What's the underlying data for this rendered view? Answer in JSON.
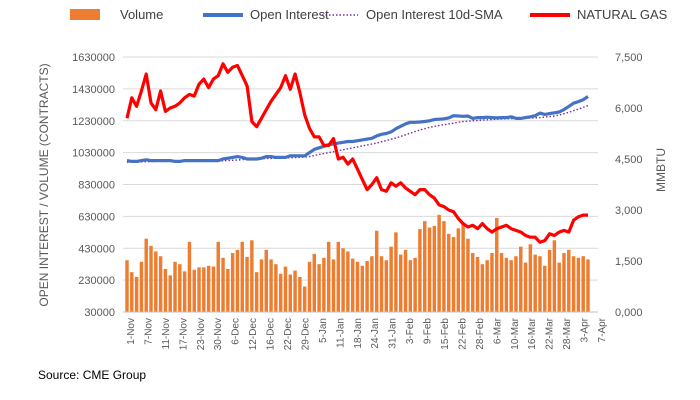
{
  "chart_data": {
    "type": "bar",
    "title": "",
    "source": "Source: CME Group",
    "ylabel_left": "OPEN INTEREST / VOLUME (CONTRACTS)",
    "ylabel_right": "MMBTU",
    "y_left_ticks": [
      "30000",
      "230000",
      "430000",
      "630000",
      "830000",
      "1030000",
      "1230000",
      "1430000",
      "1630000"
    ],
    "y_left_range": [
      30000,
      1630000
    ],
    "y_right_ticks": [
      "0,000",
      "1,500",
      "3,000",
      "4,500",
      "6,000",
      "7,500"
    ],
    "y_right_range": [
      0,
      7500
    ],
    "x_tick_labels": [
      "1-Nov",
      "7-Nov",
      "11-Nov",
      "17-Nov",
      "23-Nov",
      "30-Nov",
      "6-Dec",
      "12-Dec",
      "16-Dec",
      "22-Dec",
      "29-Dec",
      "5-Jan",
      "11-Jan",
      "18-Jan",
      "24-Jan",
      "31-Jan",
      "3-Feb",
      "9-Feb",
      "15-Feb",
      "22-Feb",
      "28-Feb",
      "6-Mar",
      "10-Mar",
      "16-Mar",
      "22-Mar",
      "28-Mar",
      "3-Apr",
      "7-Apr"
    ],
    "grid": "horizontal",
    "legend": {
      "position": "top",
      "entries": [
        "Volume",
        "Open Interest",
        "Open Interest 10d-SMA",
        "NATURAL GAS"
      ]
    },
    "colors": {
      "volume": "#ED7D31",
      "open_interest": "#4472C4",
      "open_interest_sma": "#7030A0",
      "natural_gas": "#FF0000",
      "grid": "#D9D9D9"
    },
    "series": [
      {
        "name": "Volume",
        "type": "bar",
        "axis": "left",
        "values": [
          355000,
          280000,
          250000,
          345000,
          490000,
          445000,
          410000,
          380000,
          300000,
          260000,
          345000,
          330000,
          285000,
          470000,
          295000,
          310000,
          310000,
          320000,
          315000,
          470000,
          370000,
          300000,
          400000,
          420000,
          470000,
          375000,
          480000,
          280000,
          360000,
          420000,
          360000,
          330000,
          270000,
          315000,
          265000,
          290000,
          250000,
          190000,
          345000,
          395000,
          330000,
          370000,
          470000,
          360000,
          470000,
          430000,
          410000,
          365000,
          345000,
          320000,
          350000,
          380000,
          540000,
          380000,
          355000,
          440000,
          530000,
          390000,
          420000,
          355000,
          370000,
          550000,
          600000,
          560000,
          570000,
          640000,
          600000,
          520000,
          500000,
          555000,
          580000,
          490000,
          400000,
          375000,
          330000,
          355000,
          400000,
          620000,
          400000,
          370000,
          355000,
          380000,
          440000,
          340000,
          455000,
          390000,
          380000,
          320000,
          420000,
          480000,
          340000,
          400000,
          420000,
          380000,
          370000,
          380000,
          360000
        ]
      },
      {
        "name": "Open Interest",
        "type": "line",
        "axis": "left",
        "values": [
          980000,
          975000,
          975000,
          980000,
          985000,
          980000,
          980000,
          980000,
          980000,
          980000,
          975000,
          975000,
          980000,
          980000,
          980000,
          980000,
          980000,
          980000,
          980000,
          980000,
          990000,
          995000,
          1000000,
          1005000,
          1000000,
          990000,
          990000,
          990000,
          995000,
          1005000,
          1005000,
          1000000,
          1000000,
          1000000,
          1010000,
          1010000,
          1010000,
          1010000,
          1030000,
          1050000,
          1060000,
          1070000,
          1080000,
          1085000,
          1090000,
          1095000,
          1100000,
          1100000,
          1105000,
          1110000,
          1115000,
          1120000,
          1135000,
          1145000,
          1150000,
          1160000,
          1180000,
          1195000,
          1210000,
          1220000,
          1220000,
          1222000,
          1225000,
          1230000,
          1238000,
          1240000,
          1242000,
          1248000,
          1262000,
          1260000,
          1258000,
          1260000,
          1245000,
          1250000,
          1250000,
          1252000,
          1250000,
          1248000,
          1250000,
          1250000,
          1255000,
          1245000,
          1245000,
          1250000,
          1255000,
          1262000,
          1278000,
          1270000,
          1275000,
          1280000,
          1285000,
          1300000,
          1320000,
          1340000,
          1350000,
          1362000,
          1382000
        ]
      },
      {
        "name": "Open Interest 10d-SMA",
        "type": "line",
        "style": "dotted",
        "axis": "left",
        "values": [
          970000,
          970000,
          970000,
          972000,
          973000,
          974000,
          975000,
          976000,
          977000,
          978000,
          978000,
          978000,
          978000,
          978000,
          978000,
          978000,
          978000,
          978000,
          978000,
          978000,
          979000,
          980000,
          982000,
          984000,
          986000,
          988000,
          990000,
          991000,
          992000,
          993000,
          994000,
          995000,
          996000,
          997000,
          998000,
          999000,
          1000000,
          1002000,
          1006000,
          1012000,
          1018000,
          1024000,
          1030000,
          1036000,
          1042000,
          1048000,
          1054000,
          1060000,
          1066000,
          1072000,
          1078000,
          1084000,
          1090000,
          1098000,
          1106000,
          1114000,
          1122000,
          1132000,
          1142000,
          1152000,
          1162000,
          1172000,
          1180000,
          1188000,
          1195000,
          1200000,
          1205000,
          1210000,
          1215000,
          1220000,
          1225000,
          1228000,
          1230000,
          1232000,
          1234000,
          1236000,
          1238000,
          1240000,
          1241000,
          1242000,
          1243000,
          1244000,
          1245000,
          1246000,
          1247000,
          1248000,
          1250000,
          1253000,
          1256000,
          1260000,
          1266000,
          1274000,
          1283000,
          1293000,
          1303000,
          1314000,
          1325000
        ]
      },
      {
        "name": "NATURAL GAS",
        "type": "line",
        "axis": "right",
        "values": [
          5700,
          6300,
          6050,
          6500,
          7000,
          6150,
          5950,
          6500,
          5900,
          6000,
          6050,
          6150,
          6300,
          6400,
          6350,
          6700,
          6850,
          6600,
          6850,
          6950,
          7300,
          7050,
          7200,
          7250,
          6950,
          6650,
          5600,
          5450,
          5700,
          5950,
          6200,
          6400,
          6600,
          6950,
          6550,
          7000,
          6450,
          5800,
          5400,
          5150,
          5150,
          4900,
          4900,
          5100,
          4500,
          4550,
          4350,
          4500,
          4200,
          3900,
          3600,
          3750,
          3950,
          3600,
          3550,
          3800,
          3700,
          3800,
          3650,
          3550,
          3450,
          3600,
          3600,
          3450,
          3350,
          3150,
          3100,
          3000,
          2950,
          2750,
          2600,
          2500,
          2550,
          2450,
          2600,
          2450,
          2350,
          2450,
          2500,
          2550,
          2450,
          2400,
          2350,
          2250,
          2200,
          2200,
          2050,
          2100,
          2300,
          2250,
          2350,
          2400,
          2350,
          2700,
          2800,
          2850,
          2850
        ]
      }
    ]
  }
}
